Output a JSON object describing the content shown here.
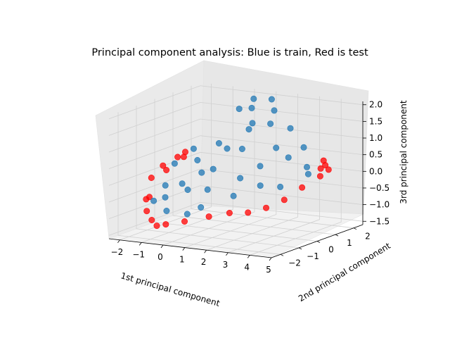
{
  "chart_data": {
    "type": "scatter",
    "projection": "3d",
    "title": "Principal component analysis: Blue is train, Red is test",
    "xlabel": "1st principal component",
    "ylabel": "2nd principal component",
    "zlabel": "3rd principal component",
    "xlim": [
      -2.5,
      5.0
    ],
    "ylim": [
      -2.5,
      2.5
    ],
    "zlim": [
      -1.6,
      2.1
    ],
    "xticks": [
      "−2",
      "−1",
      "0",
      "1",
      "2",
      "3",
      "4",
      "5"
    ],
    "yticks": [
      "−2",
      "−1",
      "0",
      "1",
      "2"
    ],
    "zticks": [
      "−1.5",
      "−1.0",
      "−0.5",
      "0.0",
      "0.5",
      "1.0",
      "1.5",
      "2.0"
    ],
    "grid": true,
    "series": [
      {
        "role": "test",
        "color": "#ff0000",
        "points": [
          [
            -2.3,
            0.4,
            -0.1
          ],
          [
            -2.2,
            0.9,
            0.2
          ],
          [
            -2.4,
            -0.3,
            -0.2
          ],
          [
            -2.1,
            1.2,
            0.3
          ],
          [
            -1.9,
            -1.0,
            -0.6
          ],
          [
            -1.6,
            -1.5,
            -0.9
          ],
          [
            -1.2,
            -1.7,
            -1.1
          ],
          [
            -0.8,
            -1.9,
            -1.2
          ],
          [
            -0.3,
            -2.0,
            -1.1
          ],
          [
            0.4,
            -1.8,
            -1.0
          ],
          [
            1.1,
            -1.3,
            -0.9
          ],
          [
            1.8,
            -1.0,
            -0.8
          ],
          [
            2.4,
            -0.7,
            -0.8
          ],
          [
            2.9,
            -0.3,
            -0.7
          ],
          [
            3.4,
            0.1,
            -0.5
          ],
          [
            3.8,
            0.6,
            -0.2
          ],
          [
            4.3,
            1.0,
            0.1
          ],
          [
            4.6,
            1.1,
            0.3
          ],
          [
            4.7,
            0.8,
            0.5
          ],
          [
            4.2,
            1.3,
            0.5
          ],
          [
            3.9,
            1.5,
            0.2
          ],
          [
            -2.2,
            0.1,
            0.1
          ],
          [
            -2.0,
            1.0,
            0.2
          ],
          [
            -1.8,
            -1.3,
            -0.6
          ]
        ]
      },
      {
        "role": "train",
        "color": "#1f77b4",
        "points": [
          [
            -2.0,
            0.5,
            0.1
          ],
          [
            -1.8,
            1.3,
            0.4
          ],
          [
            -1.5,
            -0.6,
            -0.3
          ],
          [
            -1.2,
            0.8,
            0.2
          ],
          [
            -1.0,
            -1.2,
            -0.5
          ],
          [
            -0.8,
            1.5,
            0.6
          ],
          [
            -0.5,
            0.2,
            0.0
          ],
          [
            -0.3,
            -0.8,
            -0.3
          ],
          [
            0.0,
            1.0,
            0.6
          ],
          [
            0.2,
            0.0,
            0.2
          ],
          [
            0.5,
            1.6,
            1.1
          ],
          [
            0.7,
            -0.9,
            -0.2
          ],
          [
            1.0,
            1.2,
            1.4
          ],
          [
            1.2,
            0.4,
            0.8
          ],
          [
            1.5,
            1.8,
            1.7
          ],
          [
            1.7,
            -0.3,
            0.1
          ],
          [
            2.0,
            1.0,
            1.5
          ],
          [
            2.2,
            0.2,
            0.4
          ],
          [
            2.5,
            1.5,
            1.3
          ],
          [
            2.8,
            -0.5,
            0.0
          ],
          [
            3.0,
            0.8,
            0.6
          ],
          [
            3.3,
            0.0,
            -0.1
          ],
          [
            3.6,
            1.1,
            0.3
          ],
          [
            4.0,
            0.7,
            0.2
          ],
          [
            -0.2,
            1.9,
            1.6
          ],
          [
            0.3,
            2.1,
            1.9
          ],
          [
            0.8,
            1.4,
            1.8
          ],
          [
            1.3,
            1.9,
            2.0
          ],
          [
            -1.4,
            0.2,
            -0.4
          ],
          [
            -0.6,
            -1.6,
            -0.8
          ],
          [
            0.9,
            -1.5,
            -0.6
          ],
          [
            1.9,
            -0.9,
            -0.3
          ],
          [
            2.6,
            0.6,
            0.9
          ],
          [
            3.2,
            1.4,
            0.8
          ],
          [
            -1.7,
            -1.0,
            -0.7
          ],
          [
            0.1,
            -1.3,
            -0.9
          ]
        ]
      }
    ]
  }
}
